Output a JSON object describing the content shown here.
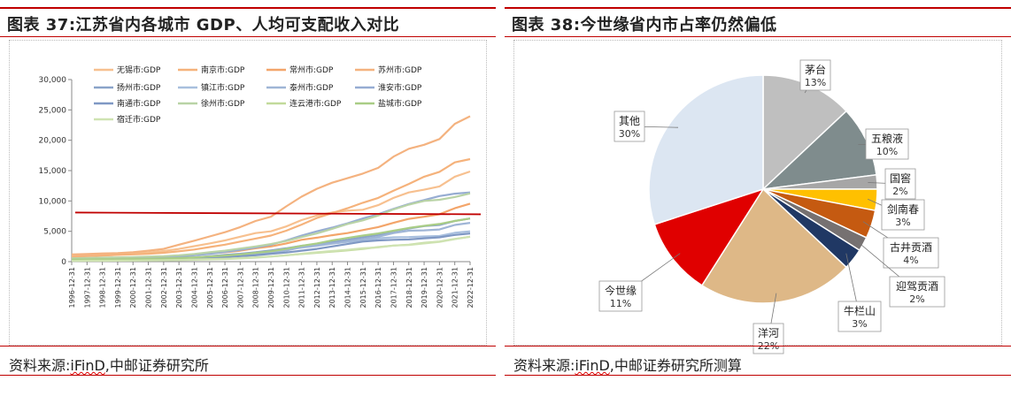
{
  "left": {
    "title": "图表 37:江苏省内各城市 GDP、人均可支配收入对比",
    "source_label": "资料来源:",
    "source_ifind": "iFinD",
    "source_rest": ",中邮证券研究所",
    "chart_data": {
      "type": "line",
      "title": "江苏省内各城市 GDP、人均可支配收入对比",
      "xlabel": "",
      "ylabel": "",
      "ylim": [
        0,
        30000
      ],
      "yticks": [
        "0",
        "5,000",
        "10,000",
        "15,000",
        "20,000",
        "25,000",
        "30,000"
      ],
      "x": [
        "1996-12-31",
        "1997-12-31",
        "1998-12-31",
        "1999-12-31",
        "2000-12-31",
        "2001-12-31",
        "2002-12-31",
        "2003-12-31",
        "2004-12-31",
        "2005-12-31",
        "2006-12-31",
        "2007-12-31",
        "2008-12-31",
        "2009-12-31",
        "2010-12-31",
        "2011-12-31",
        "2012-12-31",
        "2013-12-31",
        "2014-12-31",
        "2015-12-31",
        "2016-12-31",
        "2017-12-31",
        "2018-12-31",
        "2019-12-31",
        "2020-12-31",
        "2021-12-31",
        "2022-12-31"
      ],
      "series": [
        {
          "name": "无锡市:GDP",
          "color": "#f7c08f",
          "values": [
            900,
            1000,
            1100,
            1200,
            1350,
            1500,
            1750,
            2100,
            2550,
            3000,
            3500,
            4100,
            4700,
            5000,
            5800,
            6850,
            7600,
            8100,
            8400,
            8550,
            9300,
            10500,
            11400,
            11850,
            12400,
            14000,
            14850
          ]
        },
        {
          "name": "南京市:GDP",
          "color": "#f5b27b",
          "values": [
            800,
            900,
            1000,
            1100,
            1200,
            1300,
            1450,
            1700,
            2000,
            2400,
            2800,
            3300,
            3800,
            4300,
            5100,
            6100,
            7200,
            8000,
            8800,
            9700,
            10500,
            11700,
            12800,
            14000,
            14800,
            16350,
            16900
          ]
        },
        {
          "name": "常州市:GDP",
          "color": "#f3a56a",
          "values": [
            450,
            500,
            550,
            600,
            650,
            700,
            800,
            1000,
            1150,
            1350,
            1550,
            1800,
            2200,
            2500,
            3000,
            3600,
            3950,
            4350,
            4700,
            5200,
            5700,
            6400,
            7050,
            7400,
            7800,
            8800,
            9550
          ]
        },
        {
          "name": "苏州市:GDP",
          "color": "#f4b27f",
          "values": [
            1200,
            1250,
            1350,
            1400,
            1550,
            1800,
            2100,
            2800,
            3450,
            4150,
            4850,
            5700,
            6700,
            7400,
            9100,
            10700,
            12000,
            13000,
            13750,
            14500,
            15450,
            17300,
            18600,
            19250,
            20200,
            22700,
            23950
          ]
        },
        {
          "name": "扬州市:GDP",
          "color": "#8aa3c9",
          "values": [
            300,
            330,
            360,
            380,
            420,
            470,
            520,
            600,
            700,
            900,
            1100,
            1300,
            1550,
            1850,
            2200,
            2600,
            2900,
            3200,
            3600,
            4000,
            4400,
            5000,
            5450,
            5850,
            6050,
            6700,
            7100
          ]
        },
        {
          "name": "镇江市:GDP",
          "color": "#a8bfde",
          "values": [
            280,
            300,
            330,
            350,
            380,
            420,
            470,
            550,
            650,
            800,
            950,
            1100,
            1350,
            1650,
            1980,
            2300,
            2600,
            2950,
            3250,
            3500,
            3850,
            4000,
            4050,
            4150,
            4220,
            4750,
            5000
          ]
        },
        {
          "name": "泰州市:GDP",
          "color": "#9fb5d6",
          "values": [
            260,
            290,
            310,
            330,
            350,
            380,
            420,
            480,
            570,
            700,
            850,
            1050,
            1250,
            1500,
            1800,
            2400,
            2700,
            3000,
            3350,
            3700,
            4100,
            4700,
            5100,
            5150,
            5300,
            6050,
            6400
          ]
        },
        {
          "name": "淮安市:GDP",
          "color": "#96acd2",
          "values": [
            350,
            400,
            440,
            480,
            530,
            590,
            680,
            850,
            1050,
            1300,
            1600,
            1950,
            2350,
            2800,
            3500,
            4300,
            5000,
            5600,
            6300,
            7100,
            7800,
            8700,
            9500,
            10150,
            10800,
            11200,
            11400
          ]
        },
        {
          "name": "南通市:GDP",
          "color": "#7f98c4",
          "values": [
            230,
            250,
            270,
            290,
            320,
            350,
            390,
            440,
            520,
            640,
            750,
            900,
            1050,
            1300,
            1500,
            1800,
            2100,
            2500,
            2900,
            3300,
            3500,
            3600,
            3650,
            3850,
            4000,
            4400,
            4650
          ]
        },
        {
          "name": "徐州市:GDP",
          "color": "#b9d3a6",
          "values": [
            550,
            600,
            650,
            700,
            760,
            820,
            900,
            1050,
            1250,
            1550,
            1800,
            2150,
            2500,
            2900,
            3400,
            4050,
            4650,
            5400,
            6200,
            6800,
            7600,
            8600,
            9400,
            10000,
            10200,
            10650,
            11250
          ]
        },
        {
          "name": "连云港市:GDP",
          "color": "#c2da9b",
          "values": [
            160,
            180,
            200,
            220,
            240,
            260,
            290,
            320,
            360,
            420,
            480,
            580,
            700,
            850,
            1050,
            1250,
            1450,
            1650,
            1850,
            2100,
            2400,
            2650,
            2800,
            3100,
            3300,
            3750,
            4100
          ]
        },
        {
          "name": "盐城市:GDP",
          "color": "#a9cd86",
          "values": [
            330,
            350,
            380,
            400,
            430,
            470,
            520,
            600,
            700,
            850,
            1000,
            1200,
            1450,
            1700,
            2100,
            2600,
            3000,
            3500,
            3900,
            4300,
            4650,
            5100,
            5550,
            5900,
            6200,
            6700,
            7100
          ]
        },
        {
          "name": "宿迁市:GDP",
          "color": "#cfe3b2",
          "values": [
            120,
            140,
            150,
            160,
            180,
            200,
            220,
            250,
            300,
            360,
            420,
            520,
            650,
            830,
            1030,
            1300,
            1550,
            1750,
            1950,
            2200,
            2350,
            2650,
            2750,
            3000,
            3250,
            3700,
            4100
          ]
        }
      ],
      "reference_line": {
        "value": 7800,
        "color": "#c00000"
      }
    }
  },
  "right": {
    "title": "图表 38:今世缘省内市占率仍然偏低",
    "source_label": "资料来源:",
    "source_ifind": "iFinD",
    "source_rest": ",中邮证券研究所测算",
    "chart_data": {
      "type": "pie",
      "title": "今世缘省内市占率仍然偏低",
      "slices": [
        {
          "name": "茅台",
          "pct": "13%",
          "value": 13,
          "color": "#bfbfbf"
        },
        {
          "name": "五粮液",
          "pct": "10%",
          "value": 10,
          "color": "#7f8c8d"
        },
        {
          "name": "国窖",
          "pct": "2%",
          "value": 2,
          "color": "#a6a6a6"
        },
        {
          "name": "剑南春",
          "pct": "3%",
          "value": 3,
          "color": "#ffc000"
        },
        {
          "name": "古井贡酒",
          "pct": "4%",
          "value": 4,
          "color": "#c55a11"
        },
        {
          "name": "迎驾贡酒",
          "pct": "2%",
          "value": 2,
          "color": "#767171"
        },
        {
          "name": "牛栏山",
          "pct": "3%",
          "value": 3,
          "color": "#203864"
        },
        {
          "name": "洋河",
          "pct": "22%",
          "value": 22,
          "color": "#deb887"
        },
        {
          "name": "今世缘",
          "pct": "11%",
          "value": 11,
          "color": "#e00000"
        },
        {
          "name": "其他",
          "pct": "30%",
          "value": 30,
          "color": "#dce6f2"
        }
      ]
    }
  }
}
